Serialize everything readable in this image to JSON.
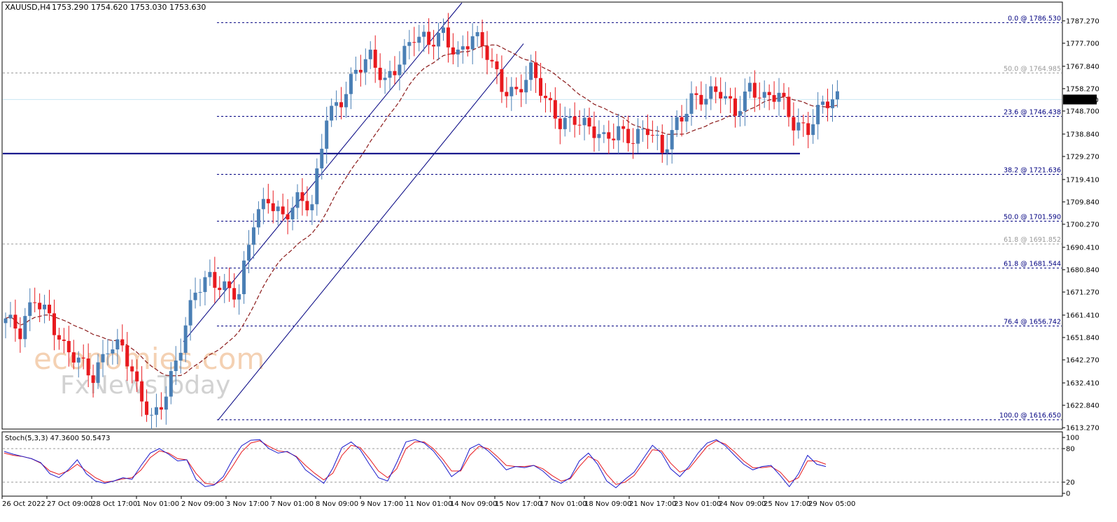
{
  "header": {
    "symbol": "XAUUSD,H4",
    "ohlc": "1753.290 1754.620 1753.030 1753.630"
  },
  "current_price_label": "1753.630",
  "watermark": {
    "line1": "economies.com",
    "line2": "FxNewsToday"
  },
  "colors": {
    "bull": "#4a7fb5",
    "bear": "#e8191e",
    "ma": "#8b1a1a",
    "fib": "#000080",
    "stoch_main": "#1a1acc",
    "stoch_signal": "#e8191e",
    "support": "#000080",
    "price_line": "#c9e7f2"
  },
  "chart_data": [
    {
      "type": "candlestick",
      "symbol": "XAUUSD",
      "timeframe": "H4",
      "ylim": [
        1613.27,
        1795.0
      ],
      "y_ticks": [
        "1787.270",
        "1777.700",
        "1767.840",
        "1758.270",
        "1748.700",
        "1738.840",
        "1729.270",
        "1719.410",
        "1709.840",
        "1700.270",
        "1690.410",
        "1680.840",
        "1671.270",
        "1661.410",
        "1651.840",
        "1642.270",
        "1632.410",
        "1622.840",
        "1613.270"
      ],
      "x_labels": [
        "26 Oct 2022",
        "27 Oct 09:00",
        "28 Oct 17:00",
        "1 Nov 01:00",
        "2 Nov 09:00",
        "3 Nov 17:00",
        "7 Nov 01:00",
        "8 Nov 09:00",
        "9 Nov 17:00",
        "11 Nov 01:00",
        "14 Nov 09:00",
        "15 Nov 17:00",
        "17 Nov 01:00",
        "18 Nov 09:00",
        "21 Nov 17:00",
        "23 Nov 01:00",
        "24 Nov 09:00",
        "25 Nov 17:00",
        "29 Nov 05:00"
      ],
      "key_prices": [
        1660,
        1652,
        1669,
        1663,
        1647,
        1640,
        1635,
        1650,
        1648,
        1628,
        1617,
        1630,
        1648,
        1670,
        1678,
        1675,
        1670,
        1700,
        1712,
        1705,
        1710,
        1706,
        1748,
        1755,
        1765,
        1770,
        1762,
        1772,
        1780,
        1776,
        1783,
        1774,
        1780,
        1772,
        1760,
        1758,
        1765,
        1752,
        1745,
        1747,
        1740,
        1735,
        1742,
        1738,
        1740,
        1730,
        1745,
        1755,
        1753,
        1756,
        1750,
        1760,
        1752,
        1755,
        1745,
        1742,
        1750,
        1753
      ],
      "fibonacci_levels": [
        {
          "label": "0.0 @ 1786.530",
          "value": 1786.53
        },
        {
          "label": "50.0 @ 1764.985",
          "value": 1764.985
        },
        {
          "label": "23.6 @ 1746.438",
          "value": 1746.438
        },
        {
          "label": "38.2 @ 1721.636",
          "value": 1721.636
        },
        {
          "label": "50.0 @ 1701.590",
          "value": 1701.59
        },
        {
          "label": "61.8 @ 1691.852",
          "value": 1691.852
        },
        {
          "label": "61.8 @ 1681.544",
          "value": 1681.544
        },
        {
          "label": "76.4 @ 1656.742",
          "value": 1656.742
        },
        {
          "label": "100.0 @ 1616.650",
          "value": 1616.65
        }
      ],
      "support_level": 1730.5,
      "current_price": 1753.63,
      "grid": false
    },
    {
      "type": "line",
      "title": "Stoch(5,3,3) 47.3600 50.5473",
      "ylim": [
        0,
        100
      ],
      "y_ticks": [
        "100",
        "80",
        "20",
        "0"
      ],
      "levels": [
        80,
        20
      ],
      "main_series": [
        75,
        70,
        66,
        62,
        55,
        35,
        28,
        42,
        60,
        35,
        22,
        18,
        22,
        28,
        25,
        50,
        72,
        80,
        70,
        58,
        60,
        25,
        12,
        15,
        30,
        60,
        85,
        95,
        96,
        80,
        72,
        75,
        65,
        42,
        30,
        18,
        45,
        82,
        92,
        78,
        52,
        28,
        22,
        55,
        92,
        96,
        90,
        76,
        55,
        30,
        42,
        80,
        88,
        76,
        60,
        42,
        48,
        46,
        50,
        40,
        25,
        18,
        28,
        58,
        72,
        52,
        22,
        10,
        25,
        38,
        62,
        86,
        72,
        44,
        30,
        48,
        72,
        90,
        96,
        85,
        68,
        52,
        42,
        48,
        50,
        32,
        12,
        35,
        68,
        52,
        48
      ],
      "signal_series": [
        72,
        68,
        66,
        62,
        54,
        40,
        34,
        40,
        52,
        40,
        28,
        20,
        22,
        26,
        28,
        42,
        64,
        76,
        72,
        62,
        60,
        36,
        18,
        16,
        24,
        48,
        74,
        90,
        94,
        84,
        76,
        74,
        66,
        50,
        36,
        24,
        36,
        68,
        86,
        82,
        62,
        40,
        28,
        44,
        80,
        92,
        92,
        80,
        62,
        40,
        40,
        68,
        84,
        80,
        66,
        50,
        48,
        48,
        50,
        44,
        32,
        22,
        26,
        48,
        66,
        58,
        34,
        16,
        20,
        32,
        54,
        78,
        76,
        54,
        38,
        44,
        64,
        84,
        94,
        88,
        74,
        58,
        46,
        46,
        48,
        38,
        20,
        28,
        58,
        58,
        52
      ],
      "grid": false
    }
  ]
}
